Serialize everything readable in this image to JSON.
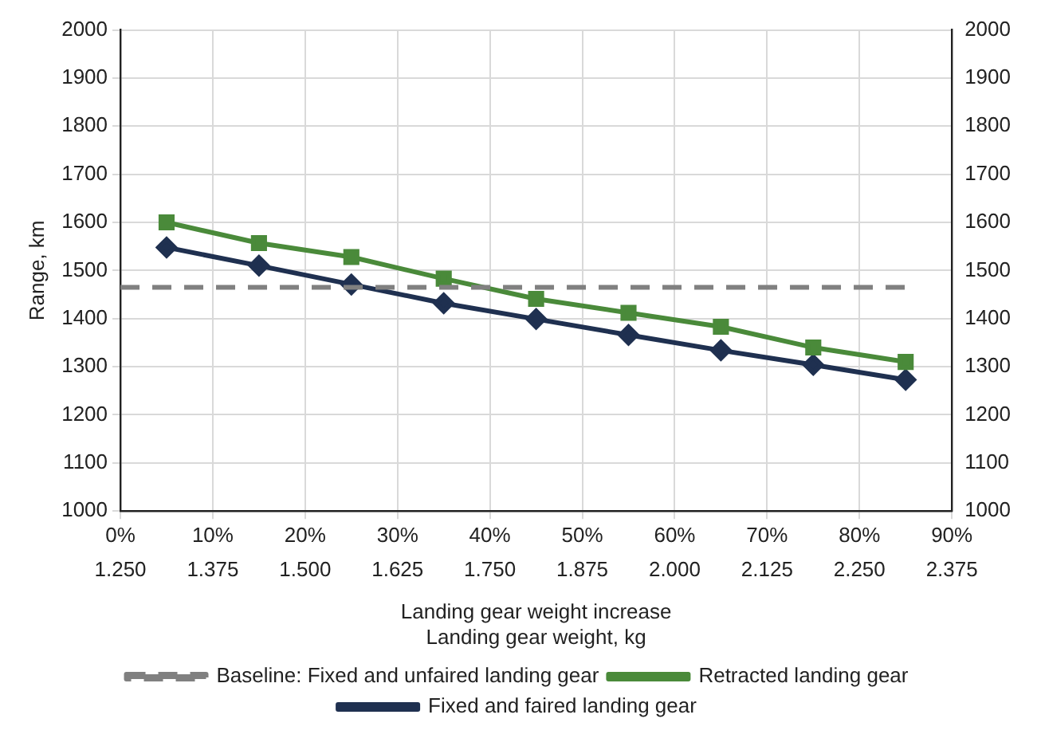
{
  "chart_data": {
    "type": "line",
    "xlabel": "Landing gear weight increase",
    "ylabel": "Range, km",
    "x2label": "Landing gear weight, kg",
    "xlim": [
      0,
      90
    ],
    "xticks": [
      {
        "value": 0,
        "label": "0%"
      },
      {
        "value": 10,
        "label": "10%"
      },
      {
        "value": 20,
        "label": "20%"
      },
      {
        "value": 30,
        "label": "30%"
      },
      {
        "value": 40,
        "label": "40%"
      },
      {
        "value": 50,
        "label": "50%"
      },
      {
        "value": 60,
        "label": "60%"
      },
      {
        "value": 70,
        "label": "70%"
      },
      {
        "value": 80,
        "label": "80%"
      },
      {
        "value": 90,
        "label": "90%"
      }
    ],
    "x2lim": [
      1.25,
      2.375
    ],
    "x2ticks": [
      {
        "value": 1.25,
        "label": "1.250"
      },
      {
        "value": 1.375,
        "label": "1.375"
      },
      {
        "value": 1.5,
        "label": "1.500"
      },
      {
        "value": 1.625,
        "label": "1.625"
      },
      {
        "value": 1.75,
        "label": "1.750"
      },
      {
        "value": 1.875,
        "label": "1.875"
      },
      {
        "value": 2,
        "label": "2.000"
      },
      {
        "value": 2.125,
        "label": "2.125"
      },
      {
        "value": 2.25,
        "label": "2.250"
      },
      {
        "value": 2.375,
        "label": "2.375"
      }
    ],
    "ylim": [
      1000,
      2000
    ],
    "yticks": [
      1000,
      1100,
      1200,
      1300,
      1400,
      1500,
      1600,
      1700,
      1800,
      1900,
      2000
    ],
    "y2lim": [
      1000,
      2000
    ],
    "y2ticks": [
      1000,
      1100,
      1200,
      1300,
      1400,
      1500,
      1600,
      1700,
      1800,
      1900,
      2000
    ],
    "x": [
      5,
      15,
      25,
      35,
      45,
      55,
      65,
      75,
      85
    ],
    "series": [
      {
        "name": "Baseline: Fixed and unfaired landing gear",
        "color": "#808080",
        "x": [
          0,
          85
        ],
        "values": [
          1465,
          1465
        ],
        "line_style": "dashed",
        "marker": "none"
      },
      {
        "name": "Retracted landing gear",
        "color": "#4a8a3a",
        "values": [
          1600,
          1557,
          1528,
          1483,
          1441,
          1412,
          1383,
          1340,
          1310
        ],
        "marker": "square"
      },
      {
        "name": "Fixed and faired landing gear",
        "color": "#1f3050",
        "values": [
          1548,
          1510,
          1471,
          1432,
          1399,
          1366,
          1334,
          1304,
          1273
        ],
        "marker": "diamond"
      }
    ],
    "grid": true,
    "legend": "bottom"
  }
}
